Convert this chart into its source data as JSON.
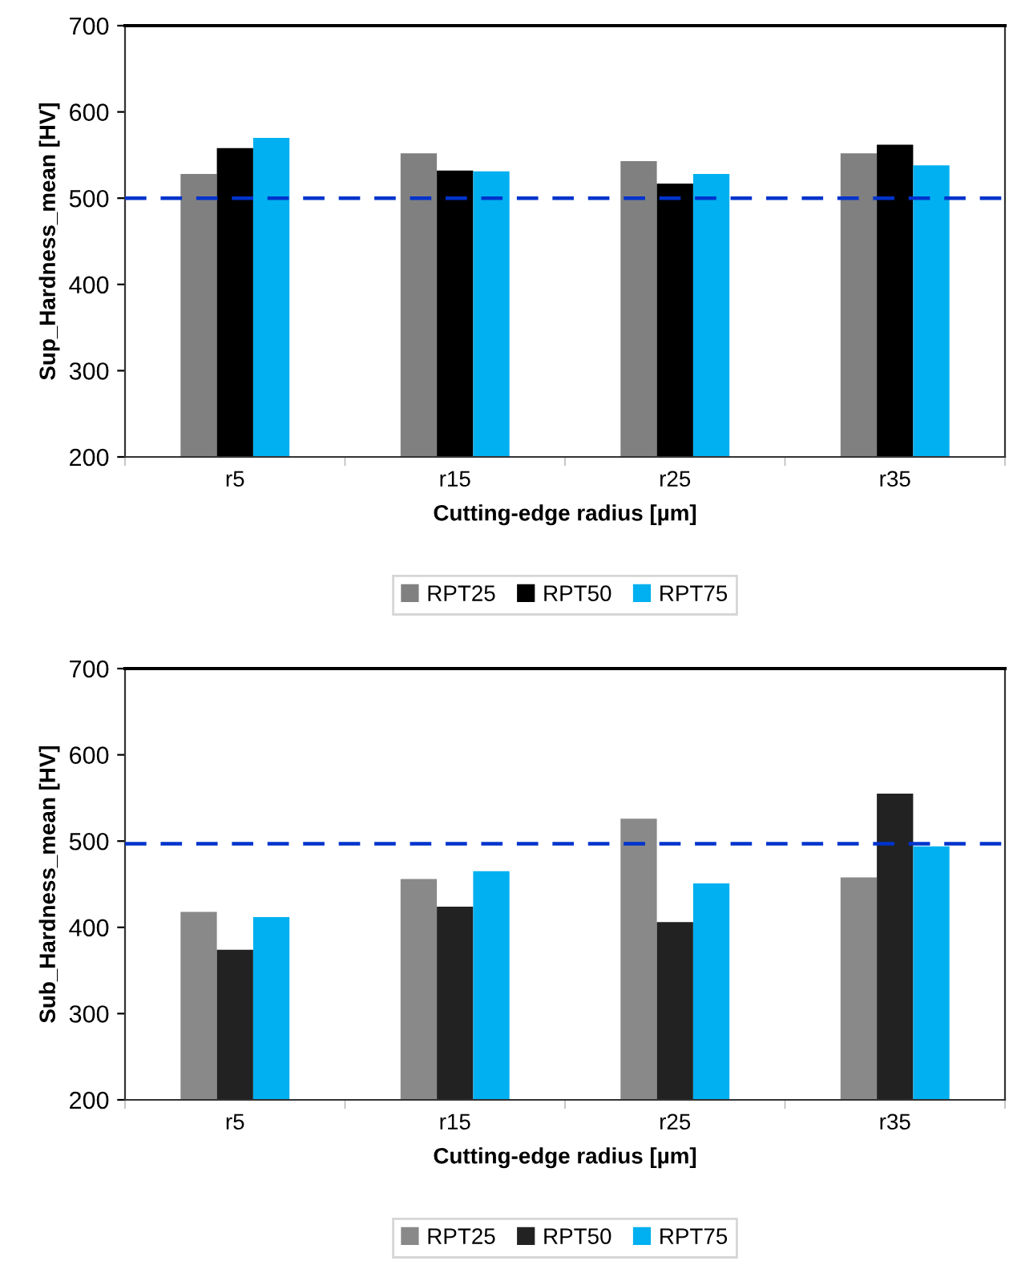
{
  "chart_data": [
    {
      "type": "bar",
      "ylabel": "Sup_Hardness_mean [HV]",
      "xlabel": "Cutting-edge radius [µm]",
      "categories": [
        "r5",
        "r15",
        "r25",
        "r35"
      ],
      "series": [
        {
          "name": "RPT25",
          "color": "#808080",
          "values": [
            528,
            552,
            543,
            552
          ]
        },
        {
          "name": "RPT50",
          "color": "#000000",
          "values": [
            558,
            532,
            517,
            562
          ]
        },
        {
          "name": "RPT75",
          "color": "#00b0f0",
          "values": [
            570,
            531,
            528,
            538
          ]
        }
      ],
      "ylim": [
        200,
        700
      ],
      "yticks": [
        200,
        300,
        400,
        500,
        600,
        700
      ],
      "grid": false,
      "legend": "bottom",
      "ref_lines": [
        {
          "axis": "y",
          "value": 500,
          "color": "#0033cc",
          "line_style": "dashed"
        }
      ]
    },
    {
      "type": "bar",
      "ylabel": "Sub_Hardness_mean [HV]",
      "xlabel": "Cutting-edge radius [µm]",
      "categories": [
        "r5",
        "r15",
        "r25",
        "r35"
      ],
      "series": [
        {
          "name": "RPT25",
          "color": "#898989",
          "values": [
            418,
            456,
            526,
            458
          ]
        },
        {
          "name": "RPT50",
          "color": "#222222",
          "values": [
            374,
            424,
            406,
            555
          ]
        },
        {
          "name": "RPT75",
          "color": "#00b0f0",
          "values": [
            412,
            465,
            451,
            494
          ]
        }
      ],
      "ylim": [
        200,
        700
      ],
      "yticks": [
        200,
        300,
        400,
        500,
        600,
        700
      ],
      "grid": false,
      "legend": "bottom",
      "ref_lines": [
        {
          "axis": "y",
          "value": 497,
          "color": "#0033cc",
          "line_style": "dashed"
        }
      ]
    }
  ]
}
